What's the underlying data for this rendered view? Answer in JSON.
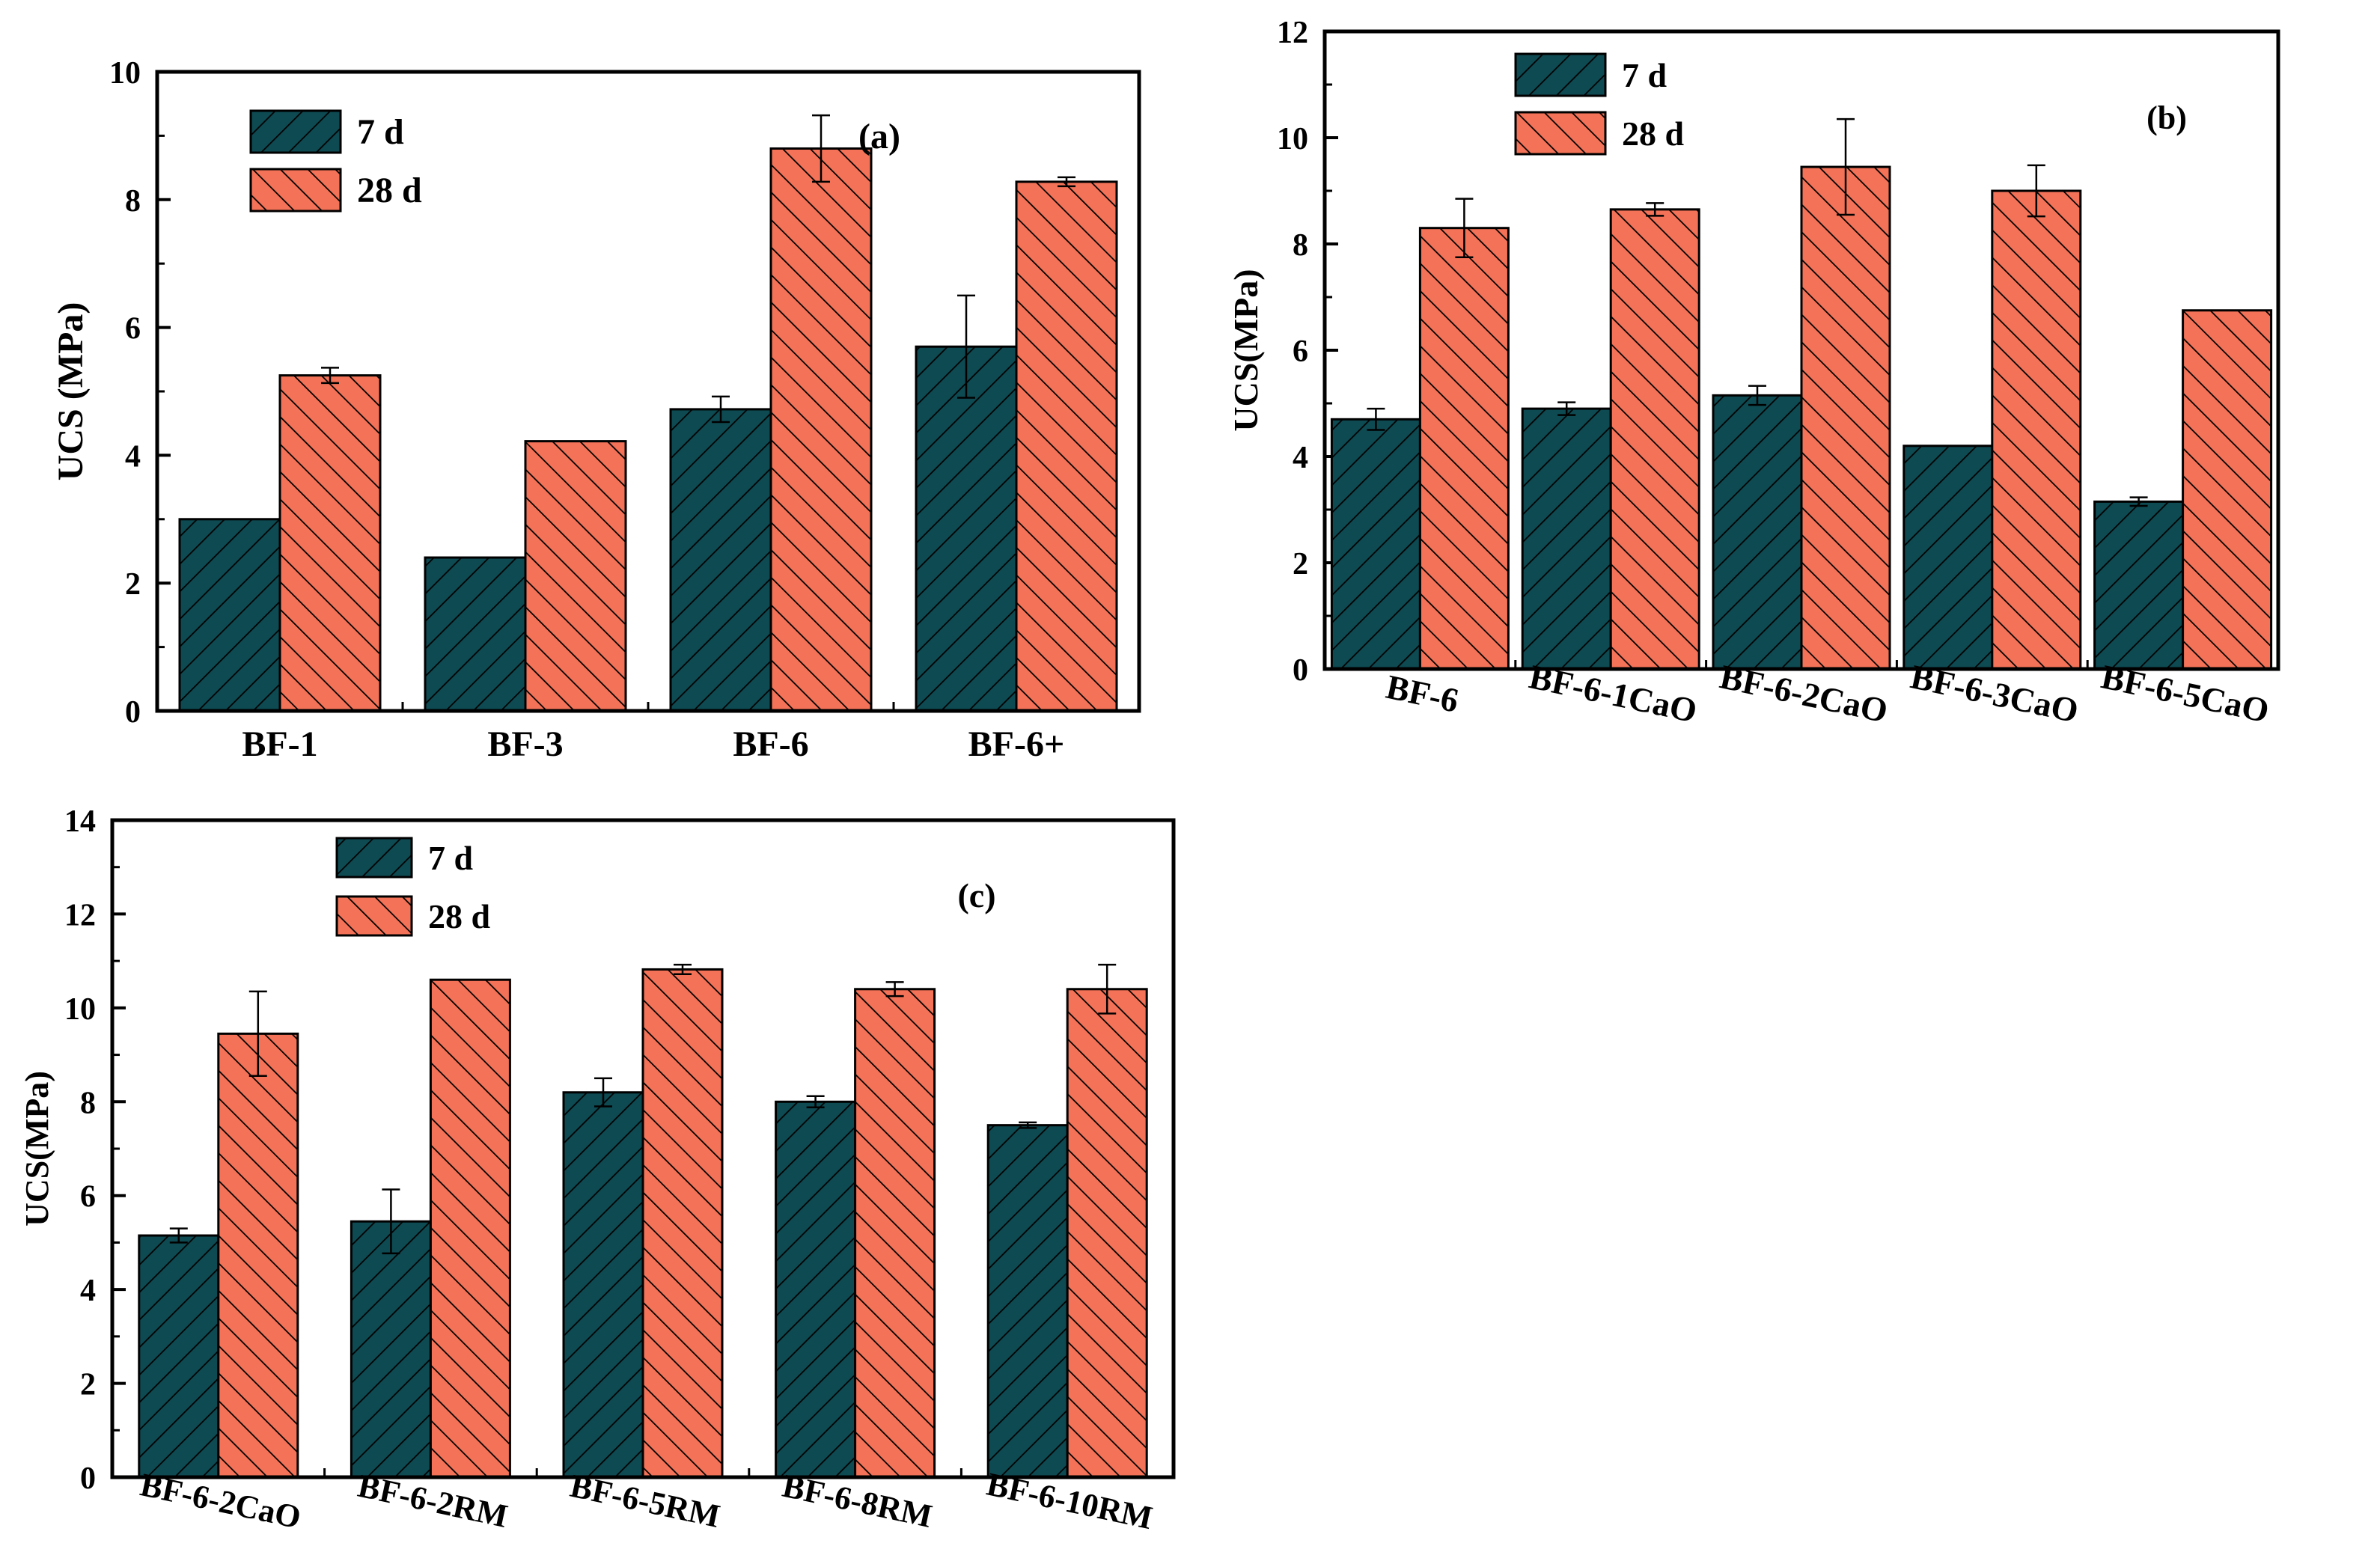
{
  "colors": {
    "series_7d": "#0e4a52",
    "series_28d": "#f47358",
    "hatch": "#000000",
    "axis": "#000000"
  },
  "chart_data": [
    {
      "panel": "a",
      "type": "bar",
      "annotation": "(a)",
      "ylabel": "UCS (MPa)",
      "xlabel": "",
      "ylim": [
        0,
        10
      ],
      "yticks": [
        "0",
        "2",
        "4",
        "6",
        "8",
        "10"
      ],
      "legend_position": "top-left",
      "categories": [
        "BF-1",
        "BF-3",
        "BF-6",
        "BF-6+"
      ],
      "series": [
        {
          "name": "7 d",
          "values": [
            3.0,
            2.4,
            4.72,
            5.7
          ],
          "errors": [
            0,
            0,
            0.2,
            0.8
          ]
        },
        {
          "name": "28 d",
          "values": [
            5.25,
            4.22,
            8.8,
            8.28
          ],
          "errors": [
            0.12,
            0,
            0.52,
            0.07
          ]
        }
      ]
    },
    {
      "panel": "b",
      "type": "bar",
      "annotation": "(b)",
      "ylabel": "UCS(MPa)",
      "xlabel": "",
      "ylim": [
        0,
        12
      ],
      "yticks": [
        "0",
        "2",
        "4",
        "6",
        "8",
        "10",
        "12"
      ],
      "legend_position": "top-left",
      "categories": [
        "BF-6",
        "BF-6-1CaO",
        "BF-6-2CaO",
        "BF-6-3CaO",
        "BF-6-5CaO"
      ],
      "series": [
        {
          "name": "7 d",
          "values": [
            4.7,
            4.9,
            5.15,
            4.2,
            3.15
          ],
          "errors": [
            0.2,
            0.12,
            0.18,
            0,
            0.08
          ]
        },
        {
          "name": "28 d",
          "values": [
            8.3,
            8.65,
            9.45,
            9.0,
            6.75
          ],
          "errors": [
            0.55,
            0.12,
            0.9,
            0.48,
            0
          ]
        }
      ]
    },
    {
      "panel": "c",
      "type": "bar",
      "annotation": "(c)",
      "ylabel": "UCS(MPa)",
      "xlabel": "",
      "ylim": [
        0,
        14
      ],
      "yticks": [
        "0",
        "2",
        "4",
        "6",
        "8",
        "10",
        "12",
        "14"
      ],
      "legend_position": "top-left",
      "categories": [
        "BF-6-2CaO",
        "BF-6-2RM",
        "BF-6-5RM",
        "BF-6-8RM",
        "BF-6-10RM"
      ],
      "series": [
        {
          "name": "7 d",
          "values": [
            5.15,
            5.45,
            8.2,
            8.0,
            7.5
          ],
          "errors": [
            0.15,
            0.68,
            0.3,
            0.12,
            0.06
          ]
        },
        {
          "name": "28 d",
          "values": [
            9.45,
            10.6,
            10.82,
            10.4,
            10.4
          ],
          "errors": [
            0.9,
            0,
            0.1,
            0.15,
            0.52
          ]
        }
      ]
    }
  ]
}
